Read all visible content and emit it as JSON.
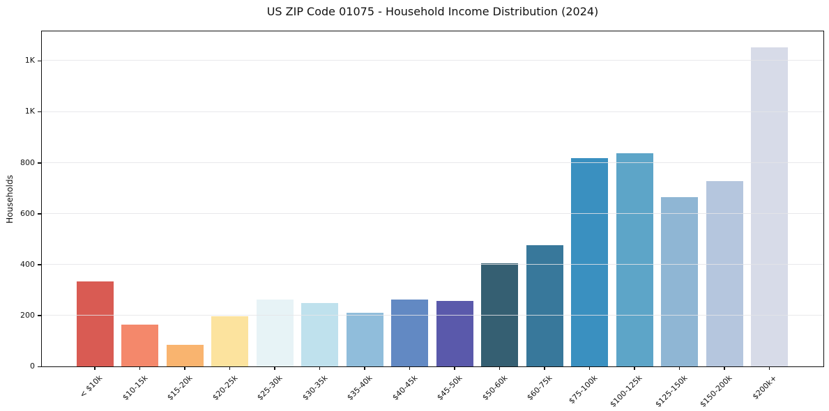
{
  "chart_data": {
    "type": "bar",
    "title": "US ZIP Code 01075 - Household Income Distribution (2024)",
    "xlabel": "",
    "ylabel": "Households",
    "categories": [
      "< $10k",
      "$10-15k",
      "$15-20k",
      "$20-25k",
      "$25-30k",
      "$30-35k",
      "$35-40k",
      "$40-45k",
      "$45-50k",
      "$50-60k",
      "$60-75k",
      "$75-100k",
      "$100-125k",
      "$125-150k",
      "$150-200k",
      "$200k+"
    ],
    "values": [
      335,
      165,
      85,
      197,
      264,
      249,
      210,
      262,
      256,
      406,
      475,
      818,
      838,
      666,
      729,
      1252
    ],
    "bar_colors": [
      "#d95b53",
      "#f4886b",
      "#f9b46f",
      "#fce39e",
      "#e7f3f6",
      "#bfe1ed",
      "#90bddb",
      "#6289c3",
      "#5a59ab",
      "#355f72",
      "#38789b",
      "#3a90c0",
      "#5da5c8",
      "#8fb6d4",
      "#b5c6de",
      "#d7dbe8"
    ],
    "ylim": [
      0,
      1316
    ],
    "yticks": {
      "values": [
        0,
        200,
        400,
        600,
        800,
        1000,
        1200
      ],
      "labels": [
        "0",
        "200",
        "400",
        "600",
        "800",
        "1K",
        "1K"
      ]
    },
    "grid": "horizontal",
    "x_tick_rotation": -45,
    "legend": "none"
  },
  "colors": {
    "background": "#ffffff",
    "spine": "#0f0f0f",
    "gridline": "#e4e4e8",
    "text": "#111111"
  }
}
